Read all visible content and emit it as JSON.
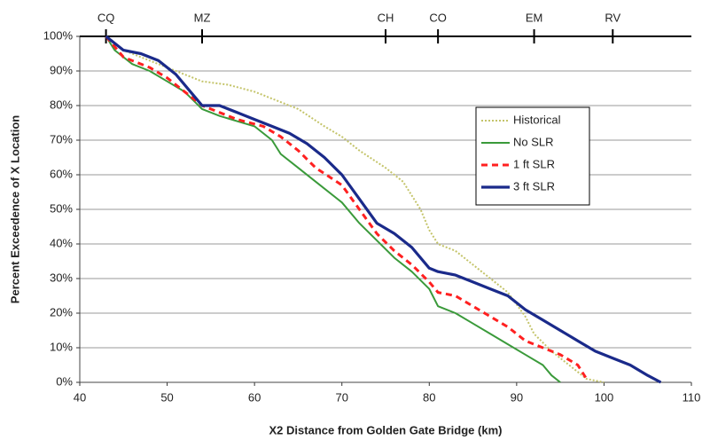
{
  "chart_data": {
    "type": "line",
    "x_label": "X2 Distance from Golden Gate Bridge (km)",
    "y_label": "Percent Exceedence of X Location",
    "xlim": [
      40,
      110
    ],
    "xticks": [
      40,
      50,
      60,
      70,
      80,
      90,
      100,
      110
    ],
    "ylim": [
      0,
      100
    ],
    "yticks": [
      {
        "value": 0,
        "label": "0%"
      },
      {
        "value": 10,
        "label": "10%"
      },
      {
        "value": 20,
        "label": "20%"
      },
      {
        "value": 30,
        "label": "30%"
      },
      {
        "value": 40,
        "label": "40%"
      },
      {
        "value": 50,
        "label": "50%"
      },
      {
        "value": 60,
        "label": "60%"
      },
      {
        "value": 70,
        "label": "70%"
      },
      {
        "value": 80,
        "label": "80%"
      },
      {
        "value": 90,
        "label": "90%"
      },
      {
        "value": 100,
        "label": "100%"
      }
    ],
    "grid": true,
    "legend": "center-right",
    "top_markers": [
      {
        "label": "CQ",
        "x": 43
      },
      {
        "label": "MZ",
        "x": 54
      },
      {
        "label": "CH",
        "x": 75
      },
      {
        "label": "CO",
        "x": 81
      },
      {
        "label": "EM",
        "x": 92
      },
      {
        "label": "RV",
        "x": 101
      }
    ],
    "series": [
      {
        "name": "Historical",
        "color": "#c4c46a",
        "dash": "dotted",
        "x": [
          43,
          45,
          48,
          50,
          52,
          54,
          57,
          60,
          62,
          65,
          68,
          70,
          72,
          75,
          77,
          78,
          79,
          80,
          81,
          83,
          85,
          87,
          89,
          91,
          92,
          94,
          96,
          98,
          100
        ],
        "values": [
          100,
          96,
          93,
          91,
          89,
          87,
          86,
          84,
          82,
          79,
          74,
          71,
          67,
          62,
          58,
          54,
          50,
          44,
          40,
          38,
          34,
          30,
          26,
          19,
          14,
          9,
          5,
          1,
          0
        ]
      },
      {
        "name": "No SLR",
        "color": "#3a9a3a",
        "dash": "solid",
        "x": [
          43,
          44,
          46,
          48,
          50,
          52,
          54,
          56,
          60,
          62,
          63,
          65,
          67,
          70,
          72,
          74,
          76,
          78,
          80,
          81,
          83,
          85,
          87,
          89,
          91,
          93,
          94,
          95
        ],
        "values": [
          100,
          96,
          92,
          90,
          87,
          84,
          79,
          77,
          74,
          70,
          66,
          62,
          58,
          52,
          46,
          41,
          36,
          32,
          27,
          22,
          20,
          17,
          14,
          11,
          8,
          5,
          2,
          0
        ]
      },
      {
        "name": "1 ft SLR",
        "color": "#ff2020",
        "dash": "dashed",
        "x": [
          43,
          45,
          48,
          50,
          52,
          54,
          56,
          58,
          61,
          63,
          65,
          67,
          70,
          72,
          74,
          76,
          78,
          80,
          81,
          83,
          85,
          87,
          89,
          91,
          93,
          95,
          97,
          98
        ],
        "values": [
          100,
          94,
          91,
          88,
          84,
          80,
          78,
          76,
          74,
          71,
          67,
          62,
          57,
          50,
          43,
          38,
          34,
          29,
          26,
          25,
          22,
          19,
          16,
          12,
          10,
          8,
          5,
          1
        ]
      },
      {
        "name": "3 ft SLR",
        "color": "#1a2a8a",
        "dash": "solid",
        "x": [
          43,
          45,
          47,
          49,
          51,
          53,
          54,
          56,
          58,
          60,
          62,
          64,
          66,
          68,
          70,
          72,
          74,
          76,
          78,
          80,
          81,
          83,
          85,
          87,
          89,
          91,
          93,
          95,
          97,
          99,
          101,
          103,
          105,
          106.5
        ],
        "values": [
          100,
          96,
          95,
          93,
          89,
          83,
          80,
          80,
          78,
          76,
          74,
          72,
          69,
          65,
          60,
          53,
          46,
          43,
          39,
          33,
          32,
          31,
          29,
          27,
          25,
          21,
          18,
          15,
          12,
          9,
          7,
          5,
          2,
          0
        ]
      }
    ]
  }
}
